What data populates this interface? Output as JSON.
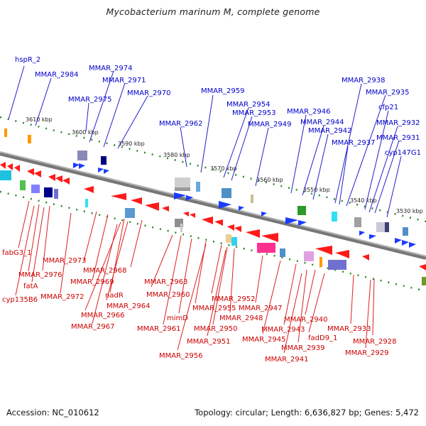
{
  "title": "Mycobacterium marinum M, complete genome",
  "footer": {
    "accession": "Accession: NC_010612",
    "summary": "Topology: circular; Length: 6,636,827 bp; Genes: 5,472"
  },
  "colors": {
    "forward_label": "#0000cc",
    "reverse_label": "#cc0000",
    "forward_feature": "#1a3cff",
    "reverse_feature": "#ff1a1a",
    "backbone": "#888888",
    "tick": "#2a8a2a"
  },
  "kbp_ticks": [
    "3610 kbp",
    "3600 kbp",
    "3590 kbp",
    "3580 kbp",
    "3570 kbp",
    "3560 kbp",
    "3550 kbp",
    "3540 kbp",
    "3530 kbp"
  ],
  "labels_forward": [
    "hspR_2",
    "MMAR_2984",
    "MMAR_2974",
    "MMAR_2975",
    "MMAR_2971",
    "MMAR_2970",
    "MMAR_2959",
    "MMAR_2962",
    "MMAR_2954",
    "MMAR_2953",
    "MMAR_2949",
    "MMAR_2946",
    "MMAR_2944",
    "MMAR_2942",
    "MMAR_2938",
    "MMAR_2935",
    "MMAR_2937",
    "cfp21",
    "MMAR_2932",
    "MMAR_2931",
    "cyp147G1"
  ],
  "labels_reverse": [
    "fabG3_1",
    "MMAR_2973",
    "MMAR_2976",
    "fatA",
    "MMAR_2972",
    "cyp135B6",
    "MMAR_2968",
    "MMAR_2969",
    "nadR",
    "MMAR_2963",
    "MMAR_2964",
    "MMAR_2966",
    "MMAR_2967",
    "MMAR_2960",
    "MMAR_2961",
    "mimD",
    "MMAR_2952",
    "MMAR_2955",
    "MMAR_2950",
    "MMAR_2948",
    "MMAR_2947",
    "MMAR_2951",
    "MMAR_2956",
    "MMAR_2945",
    "MMAR_2943",
    "MMAR_2940",
    "MMAR_2939",
    "fadD9_1",
    "MMAR_2941",
    "MMAR_2933",
    "MMAR_2928",
    "MMAR_2929"
  ]
}
